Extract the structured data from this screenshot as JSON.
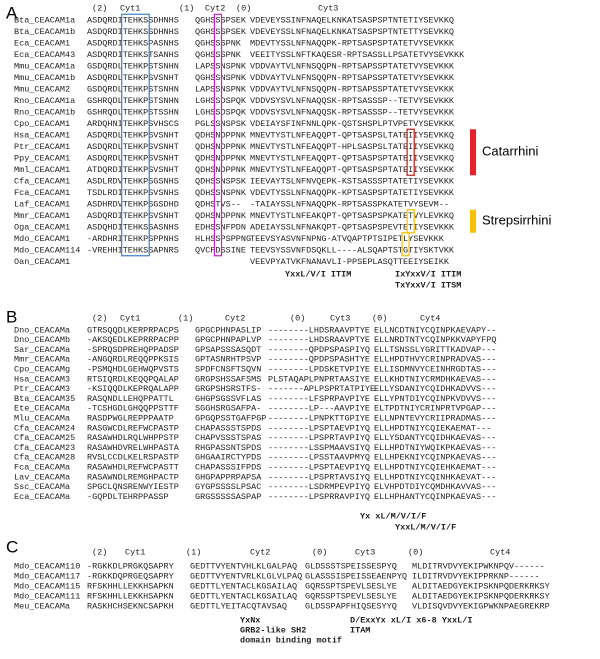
{
  "panels": [
    {
      "label": "A",
      "headers": [
        "(2)",
        "Cyt1",
        "(1)",
        "Cyt2",
        "(0)",
        "Cyt3"
      ],
      "rows": [
        {
          "name": "Bta_CEACAM1a",
          "segments": [
            "ASDQRDITEHKSSDHNHS",
            "QGHSSSPSEK",
            "VDEVEYSSINFNAQELKNKATSASPSPTNTETIYSEVKKQ"
          ]
        },
        {
          "name": "Bta_CEACAM1b",
          "segments": [
            "ASDQRDITEHKSSDHNHS",
            "QGHSSSPSEK",
            "VDEVEYSSLNFNAQELKNKATSASPSPTNTETTYSEVKKQ"
          ]
        },
        {
          "name": "Eca_CEACAM1",
          "segments": [
            "ASDQRDITEHKSPASNHS",
            "QGHSSSPNK",
            "MDEVTYSSLNFNAQQPK-RPTSASPSPTATETVYSEVKKK"
          ]
        },
        {
          "name": "Eca_CEACAM43",
          "segments": [
            "ASDQRDITEHKSTSANHS",
            "QGHSSSPNK",
            "VEEITYSSLNFTKAQESR-RPTSASSLLPSATETVYSEVKKK"
          ]
        },
        {
          "name": "Mmu_CEACAM1a",
          "segments": [
            "GSDQRDLTEHKPSTSNHN",
            "LAPSSNSPNK",
            "VDDVAYTVLNFNSQQPN-RPTSAPSSPTATETVYSEVKKK"
          ]
        },
        {
          "name": "Mmu_CEACAM1b",
          "segments": [
            "ASDQRDLTEHKPSVSNHT",
            "QGHSSNSPNK",
            "VDDVAYTVLNFNSQQPN-RPTSAPSSPTATETVYSEVKKK"
          ]
        },
        {
          "name": "Mmu_CEACAM2",
          "segments": [
            "GSDQRDLTEHKPSTSNHN",
            "LAPSSNSPNK",
            "VDDVAYTVLNFNSQQPN-RPTSAPSSPTATETVYSEVKKK"
          ]
        },
        {
          "name": "Rno_CEACAM1a",
          "segments": [
            "GSHRQDLTEHKPSTSNHN",
            "LGHSSDSPQK",
            "VDDVSYSVLNFNAQQSK-RPTSASSSP--TETVYSEVKKK"
          ]
        },
        {
          "name": "Rno_CEACAM1b",
          "segments": [
            "GSHRQDLTEHKPSTSSHN",
            "LGHSSDSPQK",
            "VDDVSYSVLNFNAQQSK-RPTSASSSP--TETVYSEVKKK"
          ]
        },
        {
          "name": "Cpo_CEACAM1",
          "segments": [
            "ARDQHNITEHKPSVHSCS",
            "PGLSSNSPSK",
            "VDEIAYSFINFNNLQPK-QSTSHSPLPTVPETVYSEVKKK"
          ]
        },
        {
          "name": "Hsa_CEACAM1",
          "segments": [
            "ASDQRDLTEHKPSVSNHT",
            "QDHSNDPPNK",
            "MNEVTYSTLNFEAQQPT-QPTSASPSLTATEIIYSEVKKQ"
          ]
        },
        {
          "name": "Ptr_CEACAM1",
          "segments": [
            "ASDQRDLTEHKPSVSNHT",
            "QDHSNDPPNK",
            "MNEVTYSTLNFEAQQPT-HPLSASPSLTATEIIYSEVKKQ"
          ]
        },
        {
          "name": "Ppy_CEACAM1",
          "segments": [
            "ASDQRDLTEHKPSVSNHT",
            "QDHSNDPPNK",
            "MNEVTYSTLNFEAQQPT-QPTSASPSPTATEIIYSEVKKQ"
          ]
        },
        {
          "name": "Mml_CEACAM1",
          "segments": [
            "ATDQRDITEHKPSVSNHT",
            "QDHSNDPPNK",
            "MNEVTYSTLNFEAQQPT-QPTSASPSPTATEIIYSEVKKK"
          ]
        },
        {
          "name": "Cfa_CEACAM1",
          "segments": [
            "ASDLRDVTEHKPSGSNHS",
            "QDHSSNSPSK",
            "IEEVAYTSLNFNVQEPK-KSTSASSSPTATETIYSEVKKK"
          ]
        },
        {
          "name": "Fca_CEACAM1",
          "segments": [
            "TSDLRDITEHKPSVSNHS",
            "QDHSSNSPNK",
            "VDEVTYSSLNFNAQQPK-KPTSASPSPTATETIYSEVKKK"
          ]
        },
        {
          "name": "Laf_CEACAM1",
          "segments": [
            "ASDHRDVTEHKPSGSDHD",
            "QDHSTVS--",
            "-TAIAYSSLNFNAQQPK-RPTSASSPKATETVYSEVM--"
          ]
        },
        {
          "name": "Mmr_CEACAM1",
          "segments": [
            "ASDQRDITEHKPSVSNHT",
            "QDHSNDPPNK",
            "MNEVTYSTLNFEAKQPT-QPTSASPSPKATETVYLEVKKQ"
          ]
        },
        {
          "name": "Oga_CEACAM1",
          "segments": [
            "ASDQHDITEHKSSASNHS",
            "EDHSSNFPDN",
            "ADEIAYSSLNFNAKQPT-QPTSASPSPEVTETIYSEVKKK"
          ]
        },
        {
          "name": "Mdo_CEACAM1",
          "segments": [
            "-ARDHRITEHKPSPPNHS",
            "HLHSSPSPPNG",
            "TEEVSYASVNFNPNG-ATVQAPTPTSIPETLYSEVKKK"
          ]
        },
        {
          "name": "Mdo_CEACAM114",
          "segments": [
            "-VREHHITEHKSSAPNRS",
            "QVCFDSSINE",
            "TEEVSYSSVNFDSQKLL----ALSQAPTSTGTIYSKTVKK"
          ]
        },
        {
          "name": "Oan_CEACAM1",
          "segments": [
            null,
            null,
            "VEEVPYATVKFNANAVLI-PPSEPLASQTTEEIYSEIKK"
          ]
        }
      ],
      "annotations": [
        {
          "text": "YxxL/V/I ITIM",
          "color": "#d81e1e"
        },
        {
          "text": "IxYxxV/I ITIM",
          "color": "#d81e1e"
        },
        {
          "text": "TxYxxV/I ITSM",
          "color": "#f08c00"
        }
      ],
      "groups": [
        {
          "text": "Catarrhini",
          "color": "#e8202a"
        },
        {
          "text": "Strepsirrhini",
          "color": "#f5c000"
        }
      ]
    },
    {
      "label": "B",
      "headers": [
        "(2)",
        "Cyt1",
        "(1)",
        "Cyt2",
        "(0)",
        "Cyt3",
        "(0)",
        "Cyt4"
      ],
      "rows": [
        {
          "name": "Dno_CEACAMa",
          "segments": [
            "GTRSQQDLKERPRPACPS",
            "GPGCPHNPASLIP",
            "--------LHDSRAAVPTYE",
            "ELLNCDTNIYCQINPKAEVAPY--"
          ]
        },
        {
          "name": "Dno_CEACAMb",
          "segments": [
            "-AKSQEDLKEPRRPACPP",
            "GPGCPHNPAPLVP",
            "--------LHDSRAAVPTYE",
            "ELLNRDTNTYCQINPKKVAPYFPQ"
          ]
        },
        {
          "name": "Sar_CEACAMa",
          "segments": [
            "-SPRQSDPREHQPPADSP",
            "GPSAPSSSASQDT",
            "--------QPDPSPASPIYQ",
            "ELLTSNSSLYGRITTKADVAP---"
          ]
        },
        {
          "name": "Mmr_CEACAMa",
          "segments": [
            "-ANGQRDLREQQPPKSIS",
            "GPTASNRHTPSVP",
            "--------QPDPSPASHTYE",
            "ELLHPDTHVYCRINPRADVAS---"
          ]
        },
        {
          "name": "Cpo_CEACAMg",
          "segments": [
            "-PSMQHDLGEHWQPVSTS",
            "SPDFCNSFTSQVN",
            "--------LPDSKETVPIYE",
            "ELLISDMNVYCEINHRGDTAS---"
          ]
        },
        {
          "name": "Hsa_CEACAM3",
          "segments": [
            "RTSIQRDLKEQQPQALAP",
            "GRGPSHSSAFSMS",
            "PLSTAQAPLPNPRTAASIYE",
            "ELLKHDTNIYCRMDHKAEVAS---"
          ]
        },
        {
          "name": "Ptr_CEACAM3",
          "segments": [
            "-KSIQQDLKEPRQALAPP",
            "GRGPSHSRSTFS-",
            "-------APLPSPRTATPIYE",
            "ELLYSDANIYCQIDHKADVVS---"
          ]
        },
        {
          "name": "Bta_CEACAM35",
          "segments": [
            "RASQNDLLEHQPPATTL",
            "GHGPSGSSVFLAS",
            "--------LFSPRPAVPIYE",
            "ELLYPNTDIYCQINPKVDVVS---"
          ]
        },
        {
          "name": "Ete_CEACAMa",
          "segments": [
            "-TCSHGDLGHQQPPSTTF",
            "SGGHSRGSAFPA-",
            "--------LP---AAVPIYE",
            "ELTPDTNIYCRINPRTVPGAP---"
          ]
        },
        {
          "name": "Mlu_CEACAMa",
          "segments": [
            "RASDPWGLREPPPAATP",
            "GPGQPSSTGAFPGP",
            "--------LPNPKTTGPIYE",
            "ELLNPNTEVYCRIIPRADMAS---"
          ]
        },
        {
          "name": "Cfa_CEACAM24",
          "segments": [
            "RASGWCDLREFWCPASTP",
            "CHAPASSSTSPDS",
            "--------LPSPTAEVPIYQ",
            "ELLHPDTNIYCQIEKAEMAT---"
          ]
        },
        {
          "name": "Cfa_CEACAM25",
          "segments": [
            "RASAWHDLRQLWHPPSTP",
            "CHAPVSSSTSPAS",
            "--------LPSPRTAVPIYQ",
            "ELLYSDANTYCQIDHKAEVAS---"
          ]
        },
        {
          "name": "Cfa_CEACAM23",
          "segments": [
            "RASAWHDVRELWHPASTA",
            "RHGPASSNTSPDS",
            "--------LSSPMAAVSIYQ",
            "ELLHPDTNIYWQIKPKAEVAS---"
          ]
        },
        {
          "name": "Cfa_CEACAM28",
          "segments": [
            "RVSLCCDLKELRSPASTP",
            "GHGAAIRCTYPDS",
            "--------LPSSTAAVPMYQ",
            "ELLHPEKNIYCQINPKAEVAS---"
          ]
        },
        {
          "name": "Fca_CEACAMa",
          "segments": [
            "RASAWHDLREFWCPASTT",
            "CHAPASSSIFPDS",
            "--------LPSPTAEVPIYQ",
            "ELLHPDTNIYCQIEHKAEMAT---"
          ]
        },
        {
          "name": "Lav_CEACAMa",
          "segments": [
            "RASAWNDLREMGHPACTP",
            "GHGPAPPRPAPSA",
            "--------LPSPRTAVSIYQ",
            "ELLHPDTNIYCQINHKAEVAT---"
          ]
        },
        {
          "name": "Ssc_CEACAMa",
          "segments": [
            "SPGCLQNSRENWYIESTP",
            "GYGPSSSSLPSAC",
            "--------LSDRMPEVPIYQ",
            "ELVHPDTDIYCQMDHKAVVAS---"
          ]
        },
        {
          "name": "Eca_CEACAMa",
          "segments": [
            "-GQPDLTEHRPPASSP",
            "GRGSSSSSASPAP",
            "--------LPSPRRAVPIYQ",
            "ELLHPHANTYCQINPKAEVAS---"
          ]
        }
      ],
      "annotations": [
        {
          "text": "Yx xL/M/V/I/F",
          "color": "#1a2fd0"
        },
        {
          "text": "YxxL/M/V/I/F",
          "color": "#1a2fd0"
        }
      ]
    },
    {
      "label": "C",
      "headers": [
        "(2)",
        "Cyt1",
        "(1)",
        "Cyt2",
        "(0)",
        "Cyt3",
        "(0)",
        "Cyt4"
      ],
      "rows": [
        {
          "name": "Mdo_CEACAM110",
          "segments": [
            "-RGKKDLPRGKQSAPRY",
            "GEDTTVYENTVHLKLGALPAQ",
            "GLDSSSTSPEISSESPYQ",
            "MLDITRVDVYEKIPWKNPQV------"
          ]
        },
        {
          "name": "Mdo_CEACAM117",
          "segments": [
            "-RGKKDQPRGEQSAPRY",
            "GEDTTVYENTVRLKLGLVLPAQ",
            "GLASSSISPEISSEAENPYQ",
            "ILDITRVDVYEKIPPRKNP------"
          ]
        },
        {
          "name": "Mdo_CEACAM115",
          "segments": [
            "RFSKHHLLEKKHSAPKN",
            "GEDTTLYENTACLKGSAILAQ",
            "GQRSSPTSPEVLSESLYE",
            "ALDITAEDGYEKIPSKNPQDERKRKSY"
          ]
        },
        {
          "name": "Mdo_CEACAM111",
          "segments": [
            "RFSKHHLLEKKHSAPKN",
            "GEDTTLYENTACLKGSAILAQ",
            "GQRSSPTSPEVLSESLYE",
            "ALDITAEDGYEKIPSKNPQDERKRKSY"
          ]
        },
        {
          "name": "Meu_CEACAMa",
          "segments": [
            "RASKHCHSEKNCSAPKH",
            "GEDTTLYEITACQTAVSAQ",
            "GLDSSPAPFHIQSESYYQ",
            "VLDISQVDVYEKIGPWKNPAEGREKRP"
          ]
        }
      ],
      "annotations": [
        {
          "text": "YxNx",
          "color": "#d01fc0"
        },
        {
          "text": "GRB2-like SH2",
          "color": "#d01fc0"
        },
        {
          "text": "domain binding motif",
          "color": "#d01fc0"
        },
        {
          "text": "D/ExxYx xL/I x6-8 YxxL/I",
          "color": "#1f8a1f"
        },
        {
          "text": "ITAM",
          "color": "#1f8a1f"
        }
      ]
    }
  ]
}
